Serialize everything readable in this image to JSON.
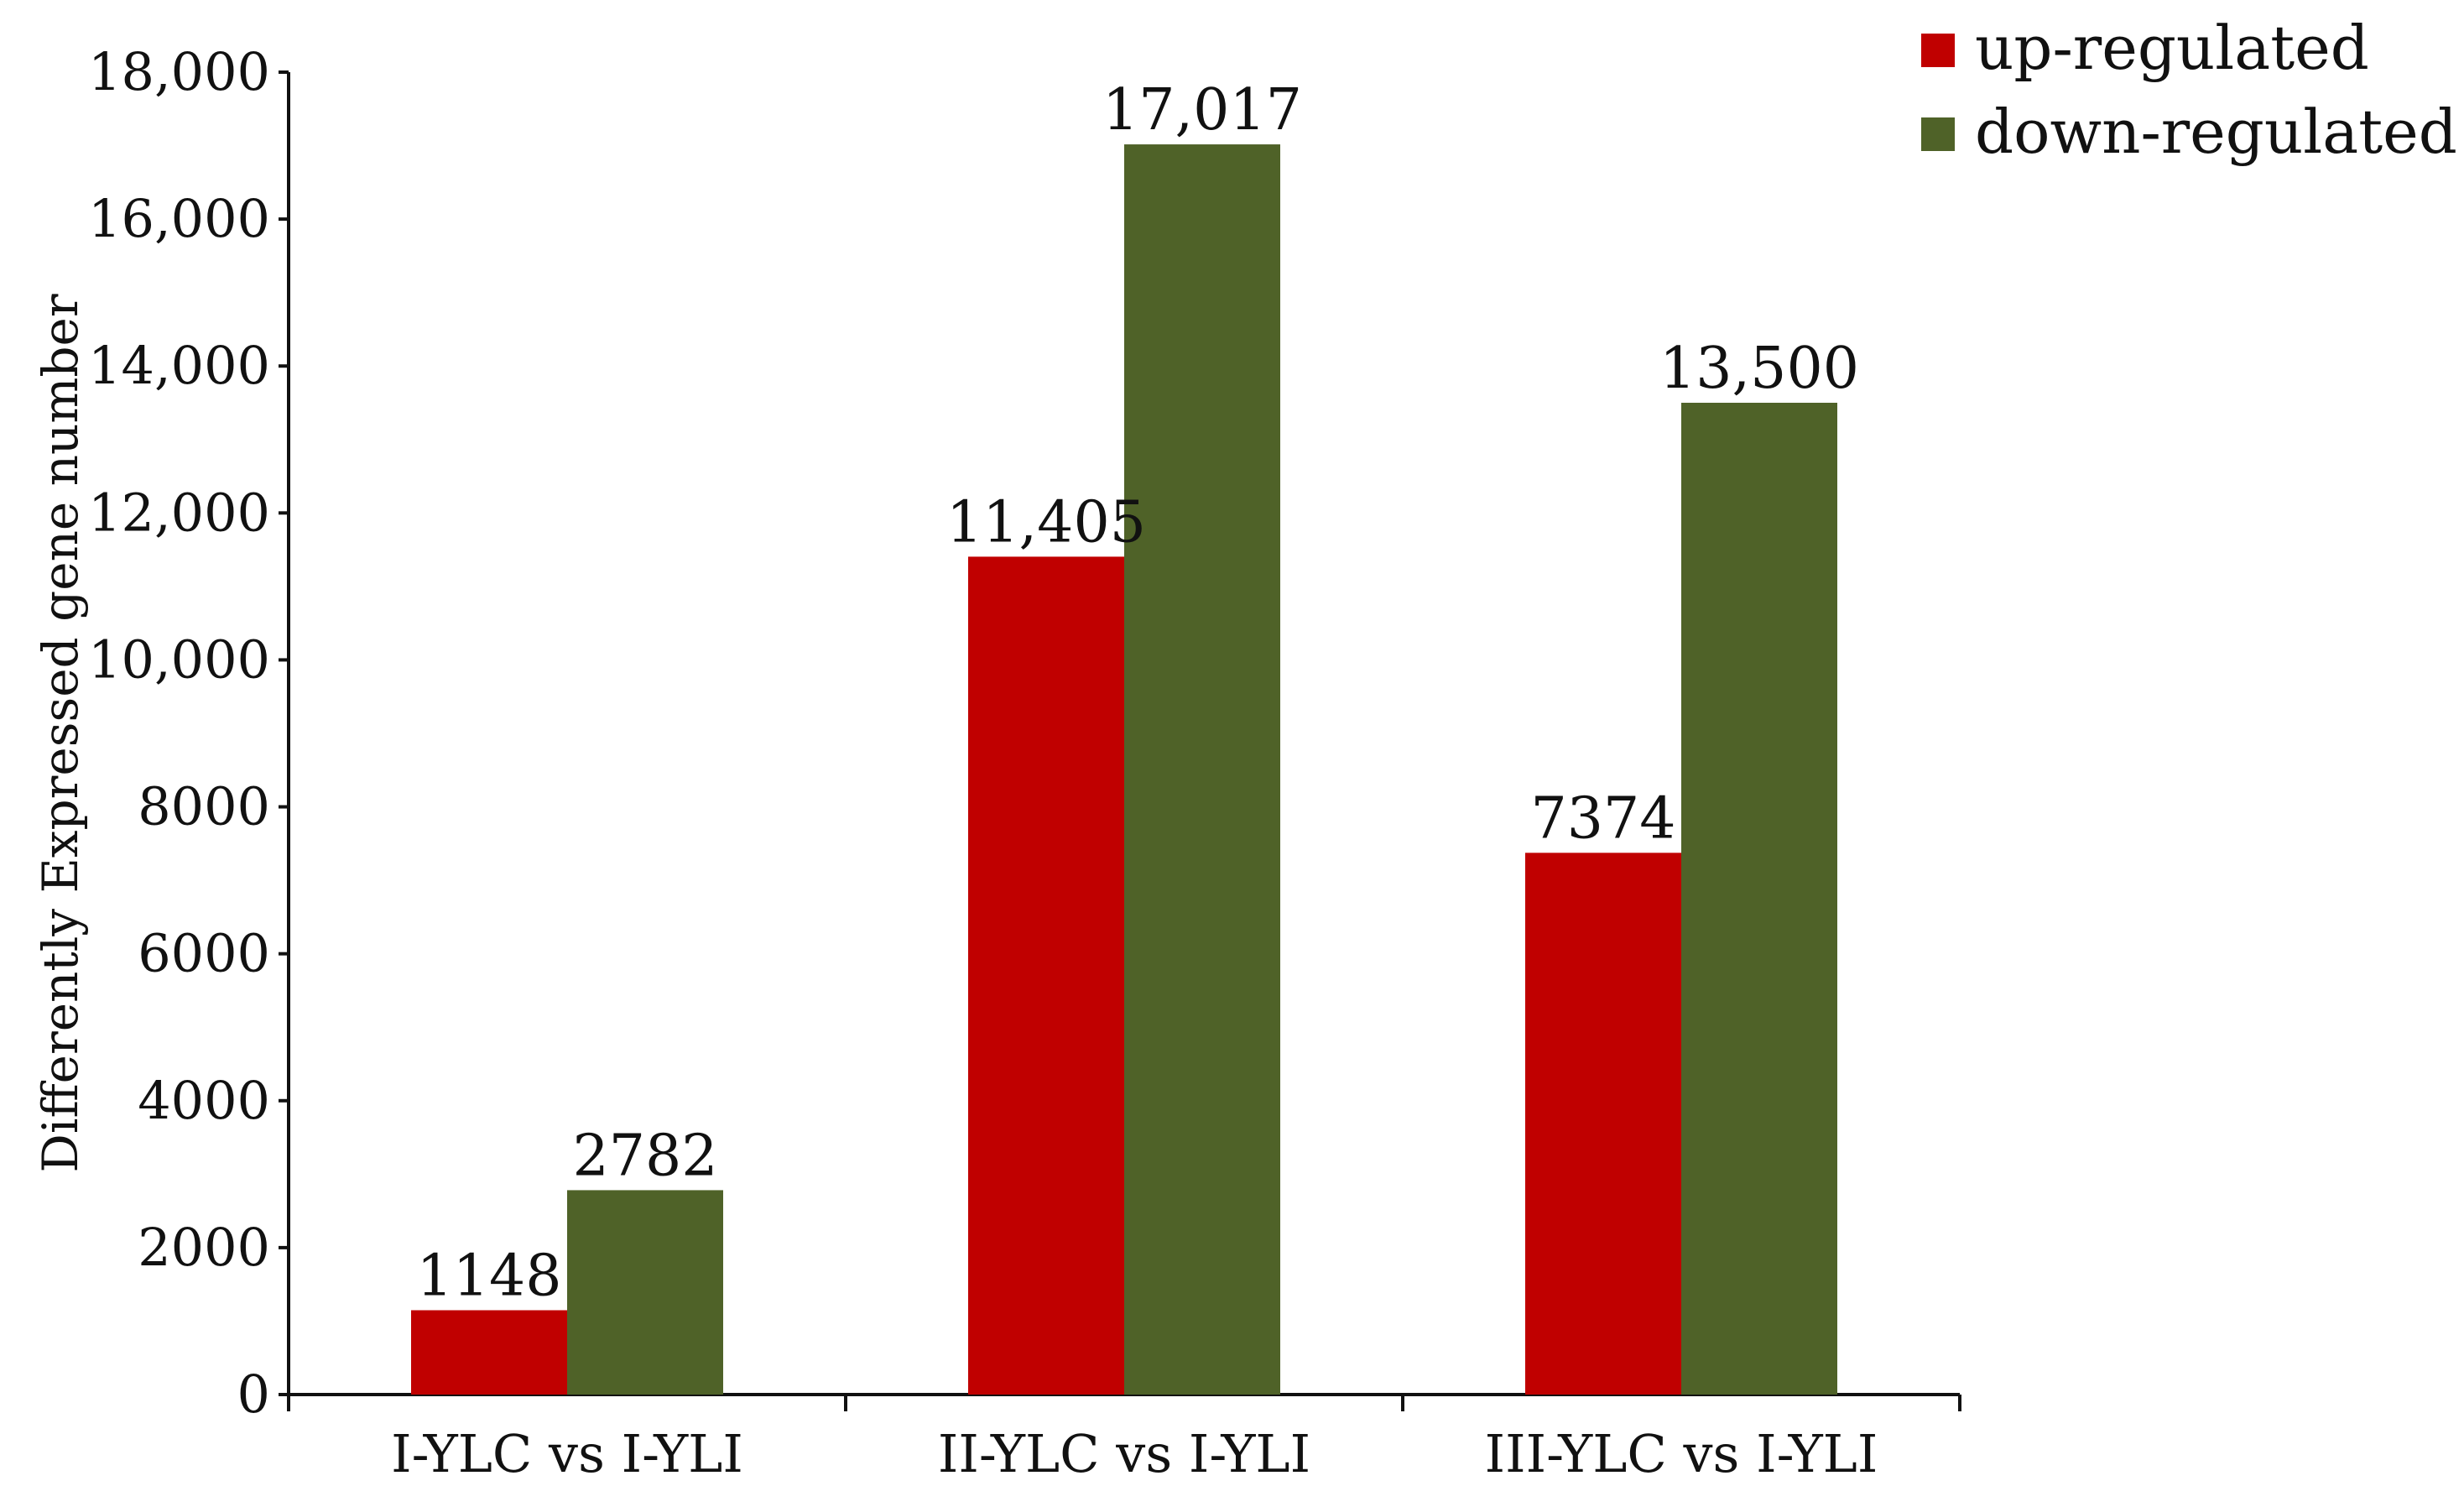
{
  "chart_data": {
    "type": "bar",
    "title": "",
    "xlabel": "",
    "ylabel": "Differently Expressed gene number",
    "ylim": [
      0,
      18000
    ],
    "yticks": [
      0,
      2000,
      4000,
      6000,
      8000,
      10000,
      12000,
      14000,
      16000,
      18000
    ],
    "ytick_labels": [
      "0",
      "2000",
      "4000",
      "6000",
      "8000",
      "10,000",
      "12,000",
      "14,000",
      "16,000",
      "18,000"
    ],
    "categories": [
      "I-YLC vs I-YLI",
      "II-YLC vs I-YLI",
      "III-YLC vs I-YLI"
    ],
    "series": [
      {
        "name": "up-regulated",
        "color": "#c00000",
        "values": [
          1148,
          11405,
          7374
        ],
        "data_labels": [
          "1148",
          "11,405",
          "7374"
        ]
      },
      {
        "name": "down-regulated",
        "color": "#4f6228",
        "values": [
          2782,
          17017,
          13500
        ],
        "data_labels": [
          "2782",
          "17,017",
          "13,500"
        ]
      }
    ],
    "legend_position": "top-right",
    "grid": false
  }
}
